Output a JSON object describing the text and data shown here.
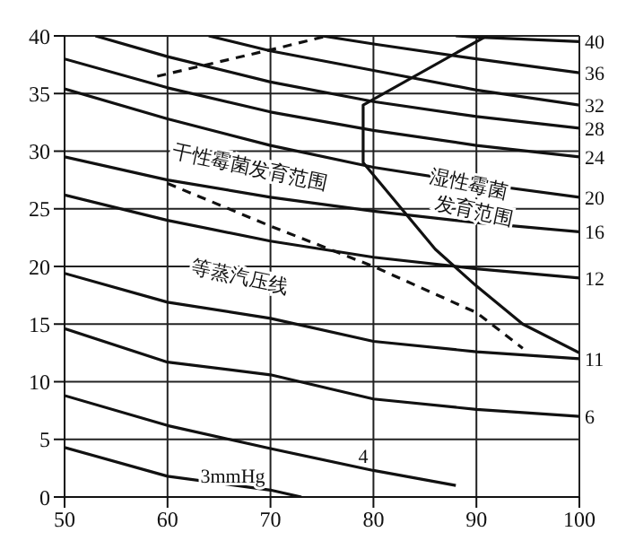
{
  "chart_data": {
    "type": "line",
    "xlim": [
      50,
      100
    ],
    "ylim": [
      0,
      40
    ],
    "xticks": [
      50,
      60,
      70,
      80,
      90,
      100
    ],
    "yticks": [
      0,
      5,
      10,
      15,
      20,
      25,
      30,
      35,
      40
    ],
    "grid": true,
    "marker": "none",
    "series": [
      {
        "name": "3mmHg",
        "color": "#111111",
        "x": [
          50,
          60,
          70,
          73
        ],
        "values": [
          4.3,
          1.8,
          0.6,
          0
        ]
      },
      {
        "name": "4",
        "color": "#111111",
        "x": [
          50,
          60,
          70,
          80,
          88
        ],
        "values": [
          8.8,
          6.2,
          4.2,
          2.3,
          1
        ]
      },
      {
        "name": "6",
        "color": "#111111",
        "x": [
          50,
          60,
          70,
          80,
          90,
          100
        ],
        "values": [
          14.6,
          11.7,
          10.6,
          8.5,
          7.6,
          7
        ]
      },
      {
        "name": "11",
        "color": "#111111",
        "x": [
          50,
          60,
          70,
          80,
          90,
          100
        ],
        "values": [
          19.4,
          16.9,
          15.5,
          13.5,
          12.6,
          12
        ]
      },
      {
        "name": "12",
        "color": "#111111",
        "x": [
          50,
          60,
          70,
          80,
          90,
          100
        ],
        "values": [
          26.2,
          24,
          22.2,
          20.8,
          19.8,
          19
        ]
      },
      {
        "name": "16",
        "color": "#111111",
        "x": [
          50,
          60,
          70,
          80,
          90,
          100
        ],
        "values": [
          29.5,
          27.5,
          26,
          24.8,
          23.8,
          23
        ]
      },
      {
        "name": "20",
        "color": "#111111",
        "x": [
          50,
          60,
          70,
          80,
          90,
          100
        ],
        "values": [
          35.4,
          32.8,
          30.5,
          28.6,
          27.2,
          26
        ]
      },
      {
        "name": "24",
        "color": "#111111",
        "x": [
          50,
          60,
          70,
          80,
          90,
          100
        ],
        "values": [
          38,
          35.5,
          33.4,
          31.8,
          30.5,
          29.5
        ]
      },
      {
        "name": "28",
        "color": "#111111",
        "x": [
          53,
          60,
          70,
          80,
          90,
          100
        ],
        "values": [
          40,
          38.2,
          36,
          34.3,
          33,
          32
        ]
      },
      {
        "name": "32",
        "color": "#111111",
        "x": [
          64,
          70,
          80,
          90,
          100
        ],
        "values": [
          40,
          38.7,
          37,
          35.3,
          34
        ]
      },
      {
        "name": "36",
        "color": "#111111",
        "x": [
          75,
          80,
          90,
          100
        ],
        "values": [
          40,
          39.3,
          38,
          36.8
        ]
      },
      {
        "name": "40",
        "color": "#111111",
        "x": [
          88,
          90,
          100
        ],
        "values": [
          40,
          39.9,
          39.5
        ]
      },
      {
        "color": "#111111",
        "line_style": "dashed",
        "x": [
          60,
          70,
          80,
          90,
          94.5
        ],
        "values": [
          27.2,
          23.5,
          20,
          16,
          12.9
        ]
      },
      {
        "color": "#111111",
        "line_style": "dashed",
        "x": [
          59,
          71,
          75.5
        ],
        "values": [
          36.5,
          39,
          40
        ]
      },
      {
        "color": "#111111",
        "x": [
          91,
          79,
          79,
          86,
          90,
          94.5,
          100
        ],
        "values": [
          40,
          34,
          29,
          21.5,
          18.3,
          15,
          12.5
        ]
      }
    ],
    "annotations": [
      "干性霉菌发育范围",
      "湿性霉菌发育范围",
      "等蒸汽压线"
    ]
  }
}
